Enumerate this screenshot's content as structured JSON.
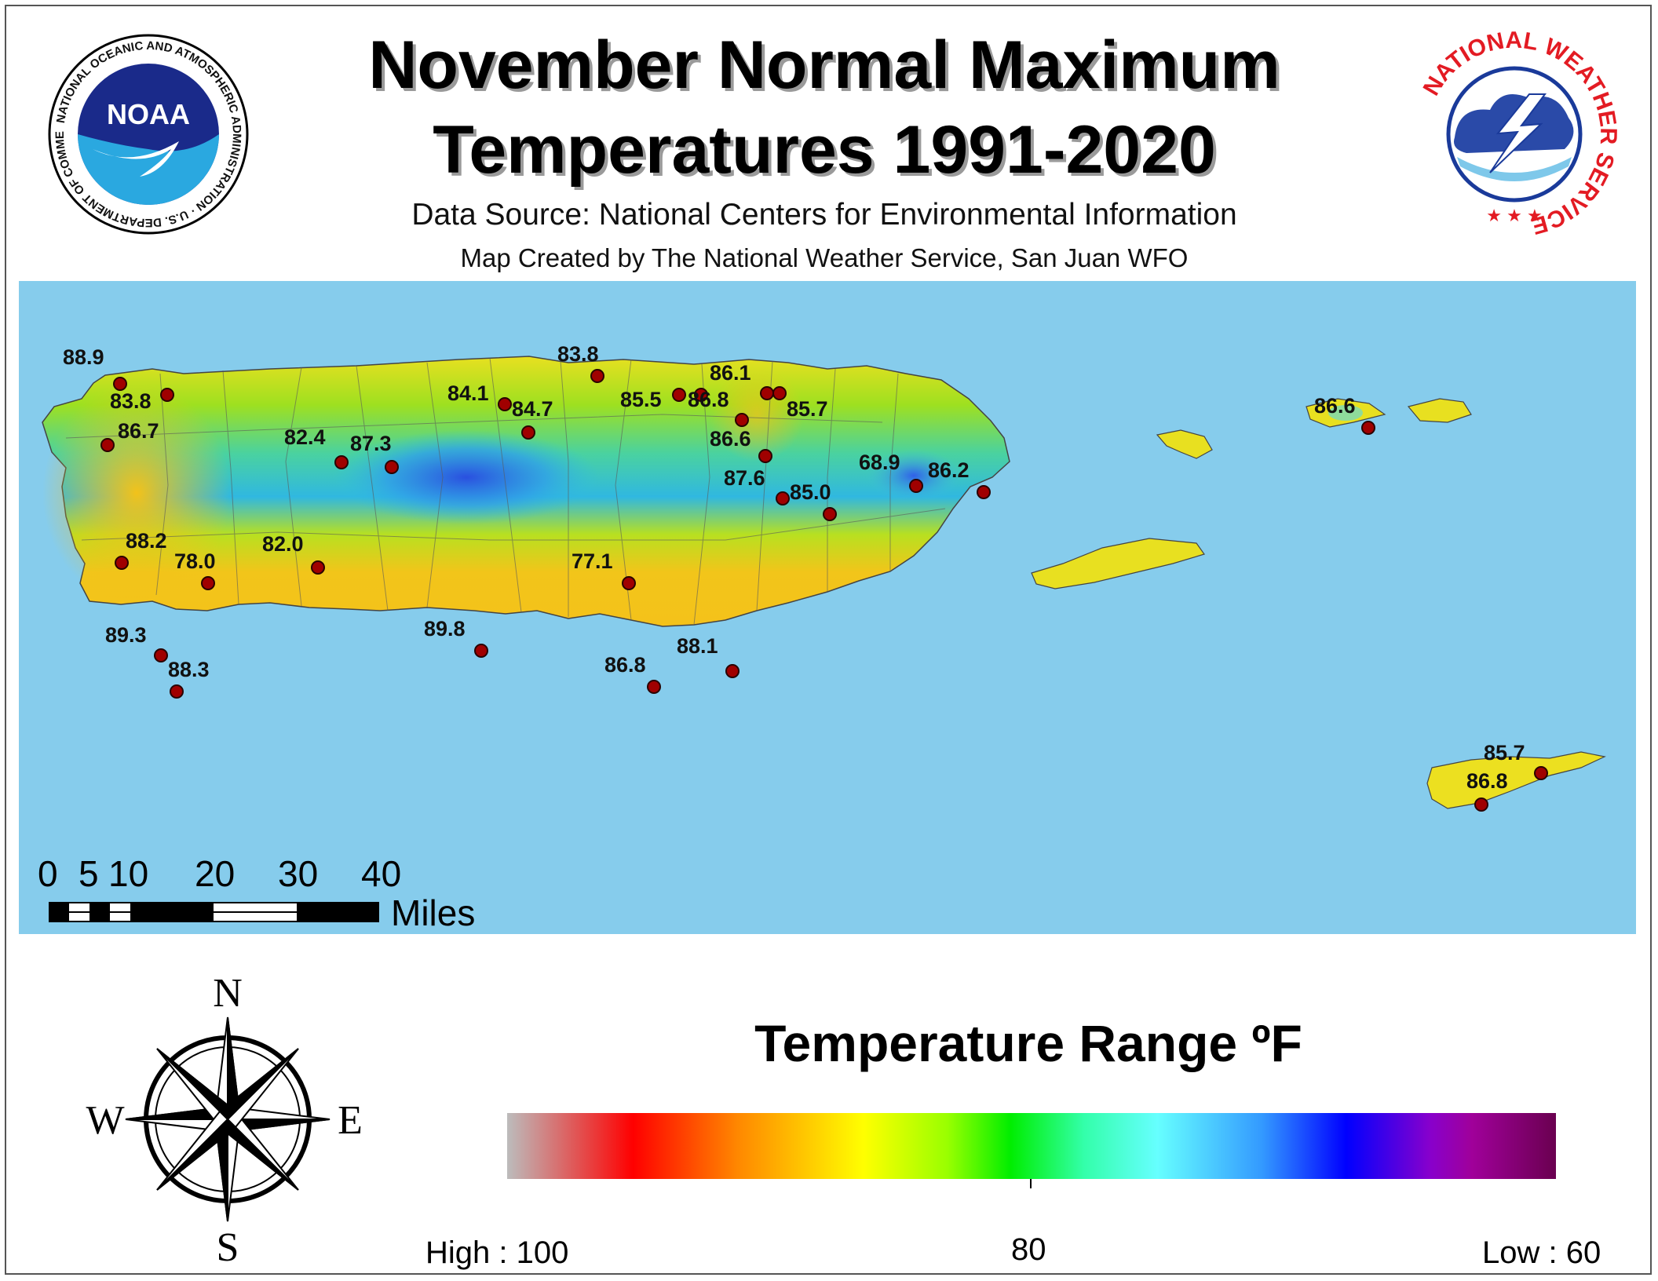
{
  "header": {
    "title_line1": "November Normal Maximum",
    "title_line2": "Temperatures 1991-2020",
    "data_source": "Data Source: National Centers for Environmental Information",
    "map_credit": "Map Created by The National Weather Service, San Juan WFO"
  },
  "logos": {
    "noaa": {
      "center_text": "NOAA",
      "ring_text": "NATIONAL OCEANIC AND ATMOSPHERIC ADMINISTRATION · U.S. DEPARTMENT OF COMMERCE"
    },
    "nws": {
      "ring_text": "NATIONAL WEATHER SERVICE"
    }
  },
  "stations": [
    {
      "value": "88.9"
    },
    {
      "value": "83.8"
    },
    {
      "value": "86.7"
    },
    {
      "value": "83.8"
    },
    {
      "value": "84.1"
    },
    {
      "value": "84.7"
    },
    {
      "value": "82.4"
    },
    {
      "value": "87.3"
    },
    {
      "value": "85.5"
    },
    {
      "value": "86.8"
    },
    {
      "value": "86.1"
    },
    {
      "value": "85.7"
    },
    {
      "value": "86.6"
    },
    {
      "value": "87.6"
    },
    {
      "value": "85.0"
    },
    {
      "value": "68.9"
    },
    {
      "value": "86.2"
    },
    {
      "value": "88.2"
    },
    {
      "value": "78.0"
    },
    {
      "value": "82.0"
    },
    {
      "value": "77.1"
    },
    {
      "value": "89.3"
    },
    {
      "value": "88.3"
    },
    {
      "value": "89.8"
    },
    {
      "value": "86.8"
    },
    {
      "value": "88.1"
    },
    {
      "value": "86.6"
    },
    {
      "value": "85.7"
    },
    {
      "value": "86.8"
    }
  ],
  "scale_bar": {
    "ticks": [
      "0",
      "5",
      "10",
      "20",
      "30",
      "40"
    ],
    "unit": "Miles"
  },
  "compass": {
    "n": "N",
    "s": "S",
    "e": "E",
    "w": "W"
  },
  "legend": {
    "title": "Temperature Range ºF",
    "high_label": "High : 100",
    "mid_label": "80",
    "low_label": "Low : 60",
    "colors": [
      "#bcbcbc",
      "#ff0000",
      "#ff8800",
      "#ffff00",
      "#00ee00",
      "#66ffff",
      "#0000ff",
      "#a0009a",
      "#6a0050"
    ]
  },
  "colors": {
    "ocean": "#86ccec",
    "land_warm": "#f2c51a",
    "land_mid": "#88e020",
    "land_cool": "#2aa0e8",
    "station": "#a00000"
  }
}
